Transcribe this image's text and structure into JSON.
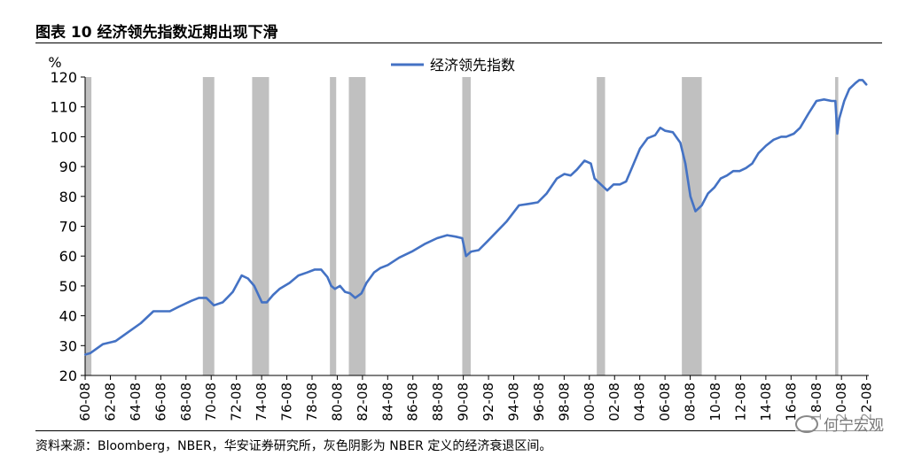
{
  "header": {
    "title": "图表 10  经济领先指数近期出现下滑"
  },
  "footer": {
    "source": "资料来源：Bloomberg，NBER，华安证券研究所，灰色阴影为 NBER 定义的经济衰退区间。"
  },
  "watermark": {
    "text": "何宁宏观"
  },
  "chart_data": {
    "type": "line",
    "title": "图表 10  经济领先指数近期出现下滑",
    "ylabel": "%",
    "ylim": [
      20,
      120
    ],
    "yticks": [
      20,
      30,
      40,
      50,
      60,
      70,
      80,
      90,
      100,
      110,
      120
    ],
    "xlim": [
      1960.58,
      2022.75
    ],
    "xticks": [
      "60-08",
      "62-08",
      "64-08",
      "66-08",
      "68-08",
      "70-08",
      "72-08",
      "74-08",
      "76-08",
      "78-08",
      "80-08",
      "82-08",
      "84-08",
      "86-08",
      "88-08",
      "90-08",
      "92-08",
      "94-08",
      "96-08",
      "98-08",
      "00-08",
      "02-08",
      "04-08",
      "06-08",
      "08-08",
      "10-08",
      "12-08",
      "14-08",
      "16-08",
      "18-08",
      "20-08",
      "22-08"
    ],
    "legend": {
      "position": "top-center",
      "entries": [
        "经济领先指数"
      ]
    },
    "colors": {
      "series": "#4472C4",
      "recession": "#C0C0C0"
    },
    "recessions": [
      [
        1960.33,
        1961.08
      ],
      [
        1969.92,
        1970.83
      ],
      [
        1973.83,
        1975.17
      ],
      [
        1980.0,
        1980.5
      ],
      [
        1981.5,
        1982.83
      ],
      [
        1990.5,
        1991.17
      ],
      [
        2001.17,
        2001.83
      ],
      [
        2007.92,
        2009.5
      ],
      [
        2020.08,
        2020.33
      ]
    ],
    "series": [
      {
        "name": "经济领先指数",
        "x": [
          1960.6,
          1961.0,
          1962.0,
          1963.0,
          1964.0,
          1965.0,
          1966.0,
          1966.6,
          1967.3,
          1968.0,
          1969.0,
          1969.6,
          1970.2,
          1970.8,
          1971.5,
          1972.3,
          1973.0,
          1973.5,
          1974.0,
          1974.6,
          1975.0,
          1975.5,
          1976.0,
          1976.8,
          1977.5,
          1978.2,
          1978.8,
          1979.3,
          1979.8,
          1980.1,
          1980.4,
          1980.8,
          1981.2,
          1981.6,
          1982.0,
          1982.5,
          1982.9,
          1983.5,
          1984.0,
          1984.6,
          1985.5,
          1986.5,
          1987.5,
          1988.5,
          1989.3,
          1990.0,
          1990.5,
          1990.8,
          1991.2,
          1991.8,
          1992.5,
          1993.2,
          1994.0,
          1995.0,
          1995.8,
          1996.5,
          1997.2,
          1998.0,
          1998.6,
          1999.1,
          1999.6,
          2000.2,
          2000.7,
          2001.0,
          2001.5,
          2002.0,
          2002.5,
          2003.0,
          2003.5,
          2004.0,
          2004.6,
          2005.2,
          2005.8,
          2006.2,
          2006.6,
          2007.2,
          2007.8,
          2008.2,
          2008.6,
          2009.0,
          2009.5,
          2010.0,
          2010.5,
          2011.0,
          2011.5,
          2012.0,
          2012.5,
          2013.0,
          2013.5,
          2014.0,
          2014.6,
          2015.2,
          2015.8,
          2016.2,
          2016.8,
          2017.3,
          2018.0,
          2018.6,
          2019.2,
          2019.8,
          2020.1,
          2020.25,
          2020.4,
          2020.8,
          2021.2,
          2021.7,
          2022.0,
          2022.25,
          2022.55
        ],
        "values": [
          27,
          27.5,
          30.5,
          31.5,
          34.5,
          37.5,
          41.5,
          41.5,
          41.5,
          43,
          45,
          46,
          46,
          43.5,
          44.5,
          48,
          53.5,
          52.5,
          50,
          44.5,
          44.5,
          47,
          49,
          51,
          53.5,
          54.5,
          55.5,
          55.5,
          53,
          50,
          49,
          50,
          48,
          47.5,
          46,
          47.5,
          51,
          54.5,
          56,
          57,
          59.5,
          61.5,
          64,
          66,
          67,
          66.5,
          66,
          60,
          61.5,
          62,
          65,
          68,
          71.5,
          77,
          77.5,
          78,
          81,
          86,
          87.5,
          87,
          89,
          92,
          91,
          86,
          84,
          82,
          84,
          84,
          85,
          90,
          96,
          99.5,
          100.5,
          103,
          102,
          101.5,
          98,
          91,
          80,
          75,
          77,
          81,
          83,
          86,
          87,
          88.5,
          88.5,
          89.5,
          91,
          94.5,
          97,
          99,
          100,
          100,
          101,
          103,
          108,
          112,
          112.5,
          112,
          112,
          101,
          106,
          112,
          116,
          118,
          119,
          119,
          117.5
        ]
      }
    ]
  }
}
